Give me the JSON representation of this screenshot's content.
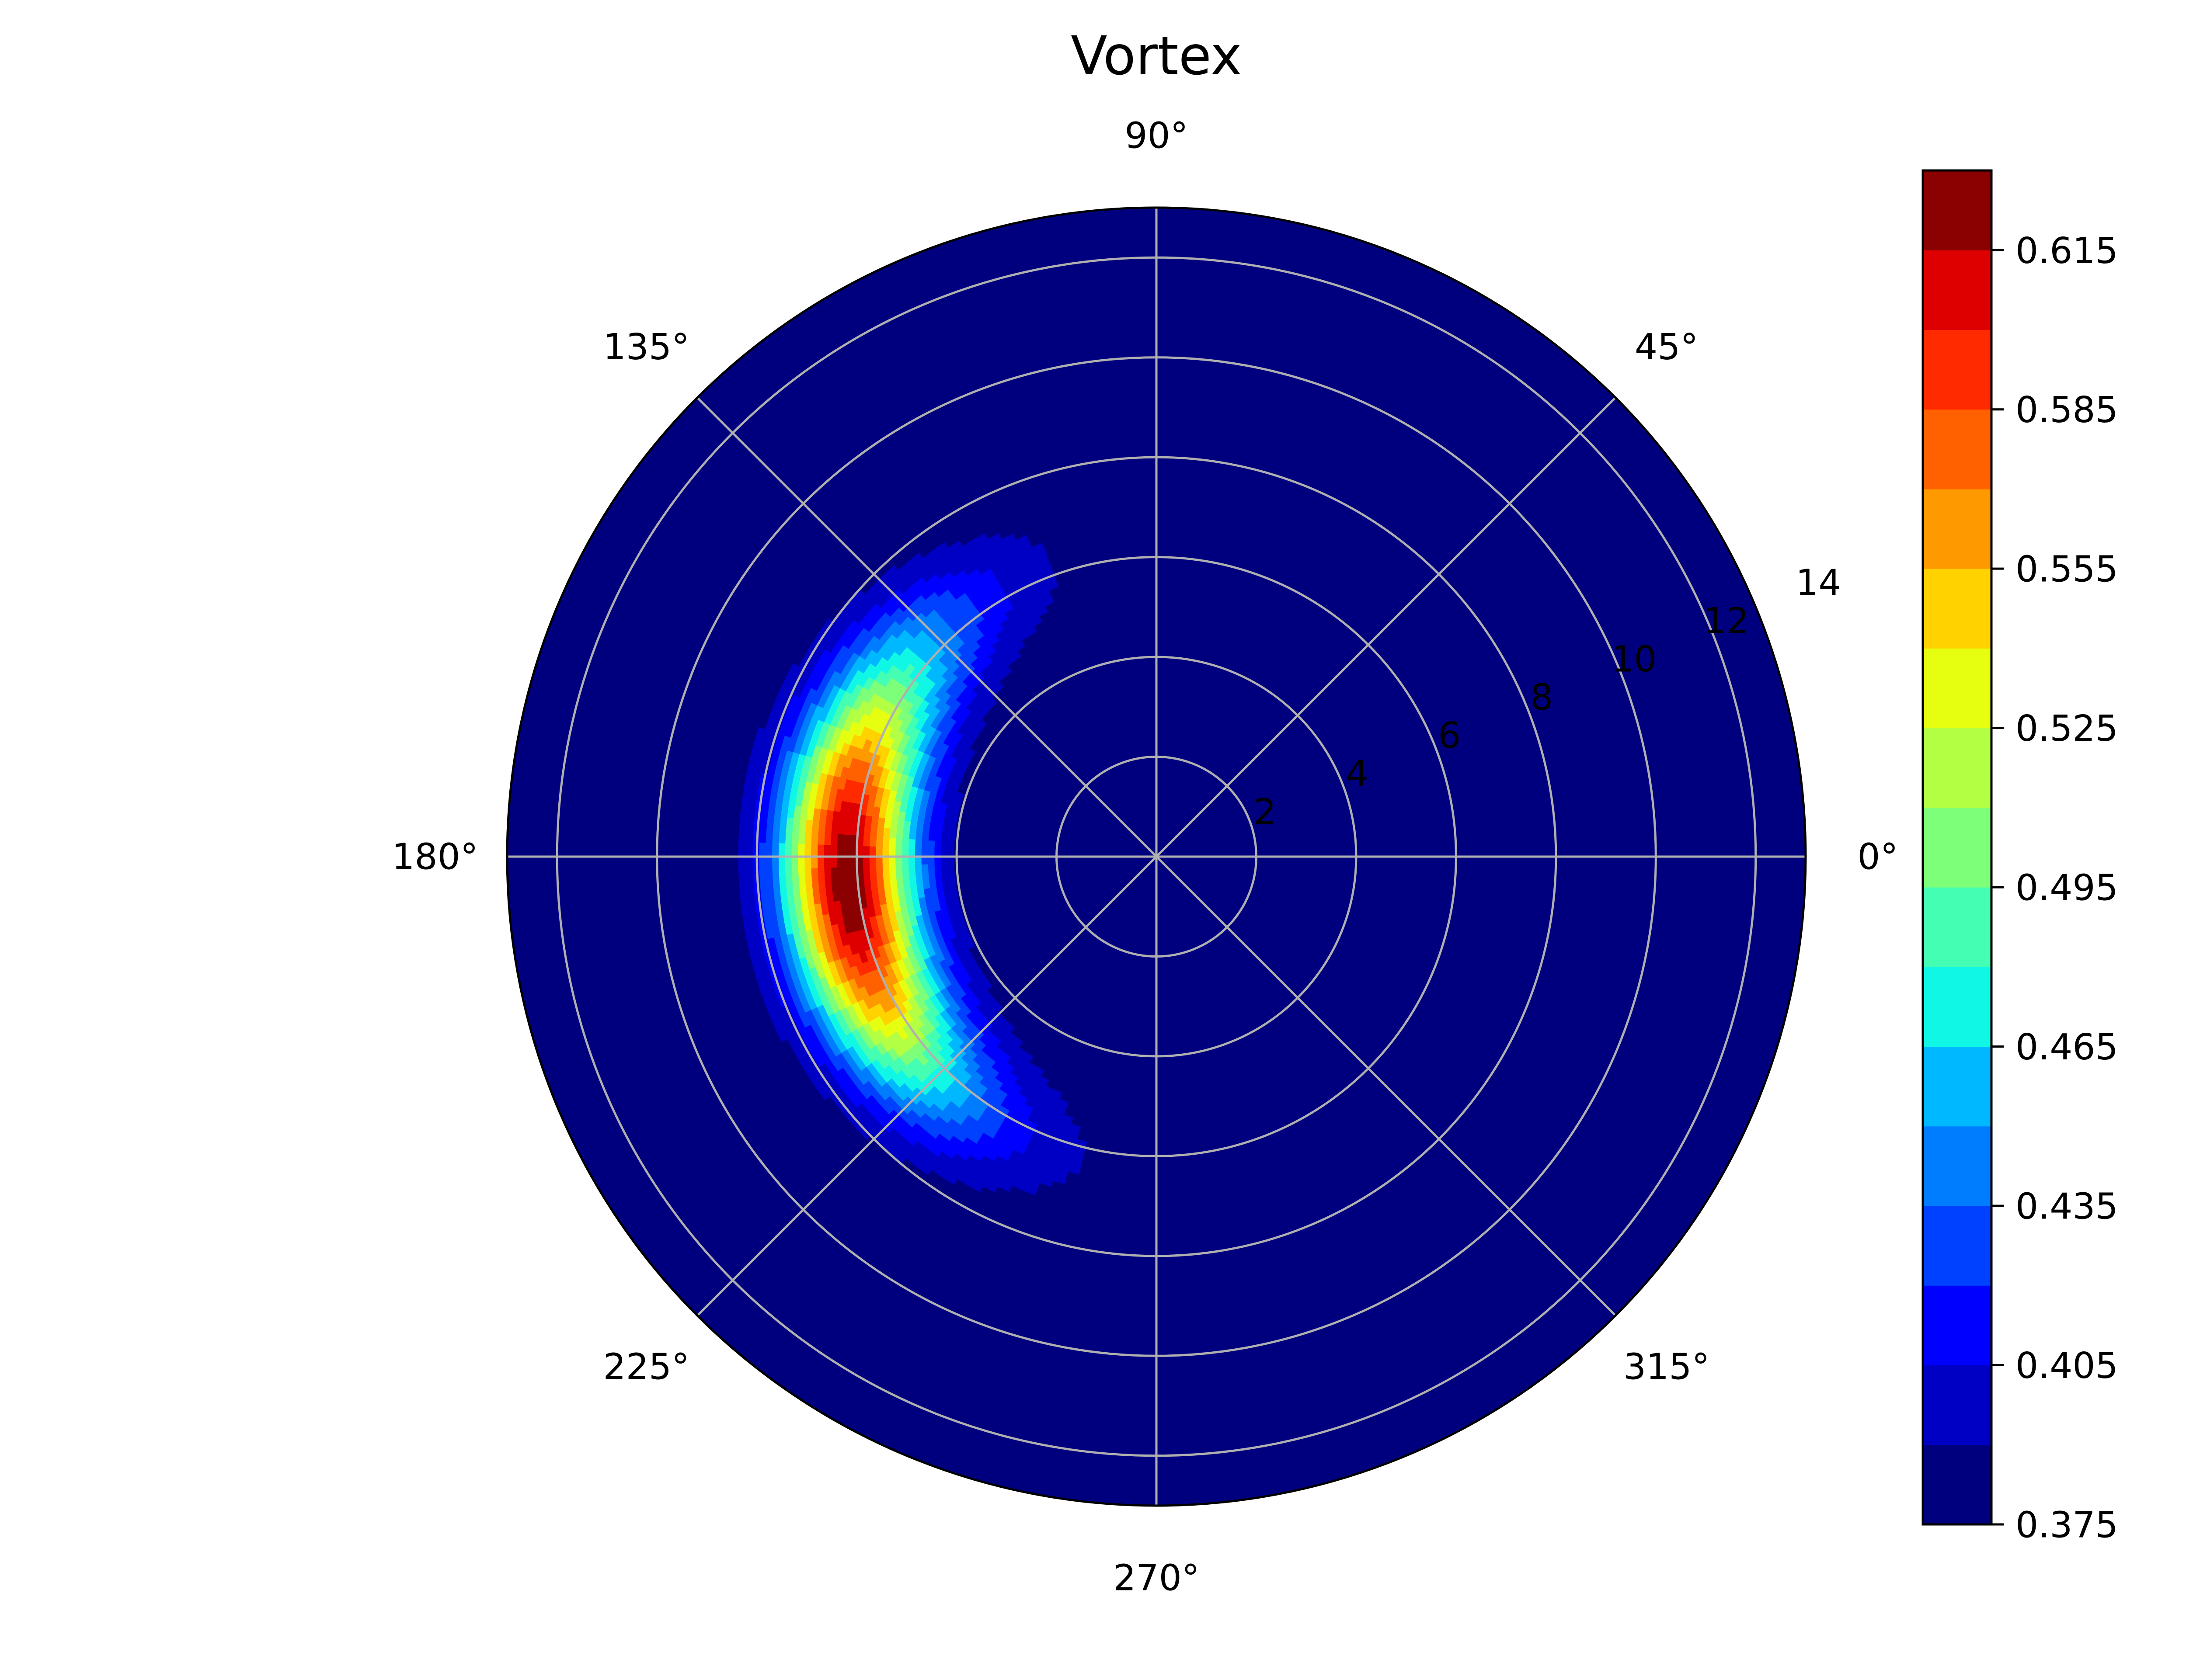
{
  "chart_data": {
    "type": "polar-contourf",
    "title": "Vortex",
    "theta_ticks": [
      "0°",
      "45°",
      "90°",
      "135°",
      "180°",
      "225°",
      "270°",
      "315°"
    ],
    "theta_tick_values": [
      0,
      45,
      90,
      135,
      180,
      225,
      270,
      315
    ],
    "r_ticks": [
      "2",
      "4",
      "6",
      "8",
      "10",
      "12",
      "14"
    ],
    "r_tick_values": [
      2,
      4,
      6,
      8,
      10,
      12,
      14
    ],
    "rlim": [
      0,
      13
    ],
    "grid": true,
    "colormap": "jet",
    "value_range": [
      0.375,
      0.63
    ],
    "colorbar": {
      "levels": [
        0.375,
        0.39,
        0.405,
        0.42,
        0.435,
        0.45,
        0.465,
        0.48,
        0.495,
        0.51,
        0.525,
        0.54,
        0.555,
        0.57,
        0.585,
        0.6,
        0.615,
        0.63
      ],
      "colors": [
        "#00007f",
        "#0000c4",
        "#0000ff",
        "#0040ff",
        "#007cff",
        "#00b8ff",
        "#11f7e6",
        "#44ffb3",
        "#7dff7a",
        "#b3ff44",
        "#e6ff11",
        "#ffd200",
        "#ff9900",
        "#ff6100",
        "#ff2a00",
        "#de0000",
        "#8b0000"
      ],
      "tick_labels": [
        "0.375",
        "0.405",
        "0.435",
        "0.465",
        "0.495",
        "0.525",
        "0.555",
        "0.585",
        "0.615"
      ],
      "tick_values": [
        0.375,
        0.405,
        0.435,
        0.465,
        0.495,
        0.525,
        0.555,
        0.585,
        0.615
      ]
    },
    "field": {
      "description": "crescent-shaped maximum on the left side of the polar plot",
      "background_value": 0.375,
      "peak_value": 0.627,
      "peak_theta_deg": 185,
      "peak_r": 6.3,
      "theta_extent_deg": [
        88,
        280
      ],
      "radial_center": 6.2,
      "radial_halfwidth": 1.3
    }
  }
}
